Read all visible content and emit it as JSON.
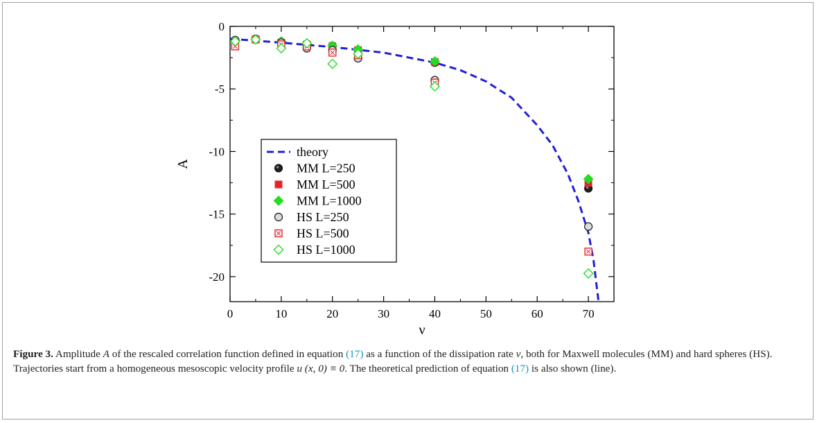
{
  "chart_data": {
    "type": "scatter",
    "xlabel": "ν",
    "ylabel": "A",
    "xlim": [
      0,
      75
    ],
    "ylim": [
      -22,
      0
    ],
    "xticks": [
      0,
      10,
      20,
      30,
      40,
      50,
      60,
      70
    ],
    "yticks": [
      0,
      -5,
      -10,
      -15,
      -20
    ],
    "tick_labels_x": [
      "0",
      "10",
      "20",
      "30",
      "40",
      "50",
      "60",
      "70"
    ],
    "tick_labels_y": [
      "0",
      "-5",
      "-10",
      "-15",
      "-20"
    ],
    "grid": false,
    "legend_position": "center-left",
    "theory": {
      "name": "theory",
      "color": "#1f1fd6",
      "style": "dashed",
      "points": [
        [
          0,
          -1.0
        ],
        [
          10,
          -1.3
        ],
        [
          20,
          -1.65
        ],
        [
          30,
          -2.1
        ],
        [
          40,
          -2.9
        ],
        [
          45,
          -3.5
        ],
        [
          50,
          -4.4
        ],
        [
          55,
          -5.7
        ],
        [
          60,
          -7.9
        ],
        [
          63,
          -9.5
        ],
        [
          66,
          -11.8
        ],
        [
          68,
          -13.9
        ],
        [
          70,
          -16.5
        ],
        [
          71,
          -18.7
        ],
        [
          72,
          -22.0
        ]
      ]
    },
    "series": [
      {
        "name": "MM   L=250",
        "marker": "circle-filled",
        "color": "#222222",
        "x": [
          1,
          5,
          10,
          15,
          20,
          25,
          40,
          70
        ],
        "y": [
          -1.15,
          -1.05,
          -1.25,
          -1.45,
          -1.55,
          -1.9,
          -2.9,
          -12.95
        ]
      },
      {
        "name": "MM   L=500",
        "marker": "square-filled",
        "color": "#e8222b",
        "x": [
          1,
          5,
          10,
          15,
          20,
          25,
          40,
          70
        ],
        "y": [
          -1.2,
          -1.05,
          -1.3,
          -1.45,
          -1.6,
          -1.9,
          -2.85,
          -12.5
        ]
      },
      {
        "name": "MM   L=1000",
        "marker": "diamond-filled",
        "color": "#22dd22",
        "x": [
          1,
          5,
          10,
          15,
          20,
          25,
          40,
          70
        ],
        "y": [
          -1.15,
          -1.05,
          -1.2,
          -1.4,
          -1.55,
          -1.85,
          -2.8,
          -12.2
        ]
      },
      {
        "name": "HS   L=250",
        "marker": "circle-open",
        "color": "#333333",
        "x": [
          1,
          5,
          10,
          15,
          20,
          25,
          40,
          70
        ],
        "y": [
          -1.1,
          -1.0,
          -1.3,
          -1.75,
          -1.9,
          -2.55,
          -4.3,
          -16.0
        ]
      },
      {
        "name": "HS   L=500",
        "marker": "square-open",
        "color": "#e8222b",
        "x": [
          1,
          5,
          10,
          15,
          20,
          25,
          40,
          70
        ],
        "y": [
          -1.6,
          -1.05,
          -1.45,
          -1.6,
          -2.1,
          -2.3,
          -4.5,
          -18.0
        ]
      },
      {
        "name": "HS   L=1000",
        "marker": "diamond-open",
        "color": "#22dd22",
        "x": [
          1,
          5,
          10,
          15,
          20,
          25,
          40,
          70
        ],
        "y": [
          -1.2,
          -1.05,
          -1.75,
          -1.35,
          -3.0,
          -2.2,
          -4.8,
          -19.75
        ]
      }
    ]
  },
  "caption": {
    "label": "Figure 3.",
    "part1": " Amplitude ",
    "amp_symbol": "A",
    "part2": " of the rescaled correlation function defined in equation ",
    "eq1": "(17)",
    "part3": " as a function of the dissipation rate ",
    "nu": "ν",
    "part4": ", both for Maxwell molecules (MM) and hard spheres (HS). Trajectories start from a homogeneous mesoscopic velocity profile ",
    "profile": "u (x, 0) ≡ 0",
    "part5": ". The theoretical prediction of equation ",
    "eq2": "(17)",
    "part6": " is also shown (line)."
  }
}
